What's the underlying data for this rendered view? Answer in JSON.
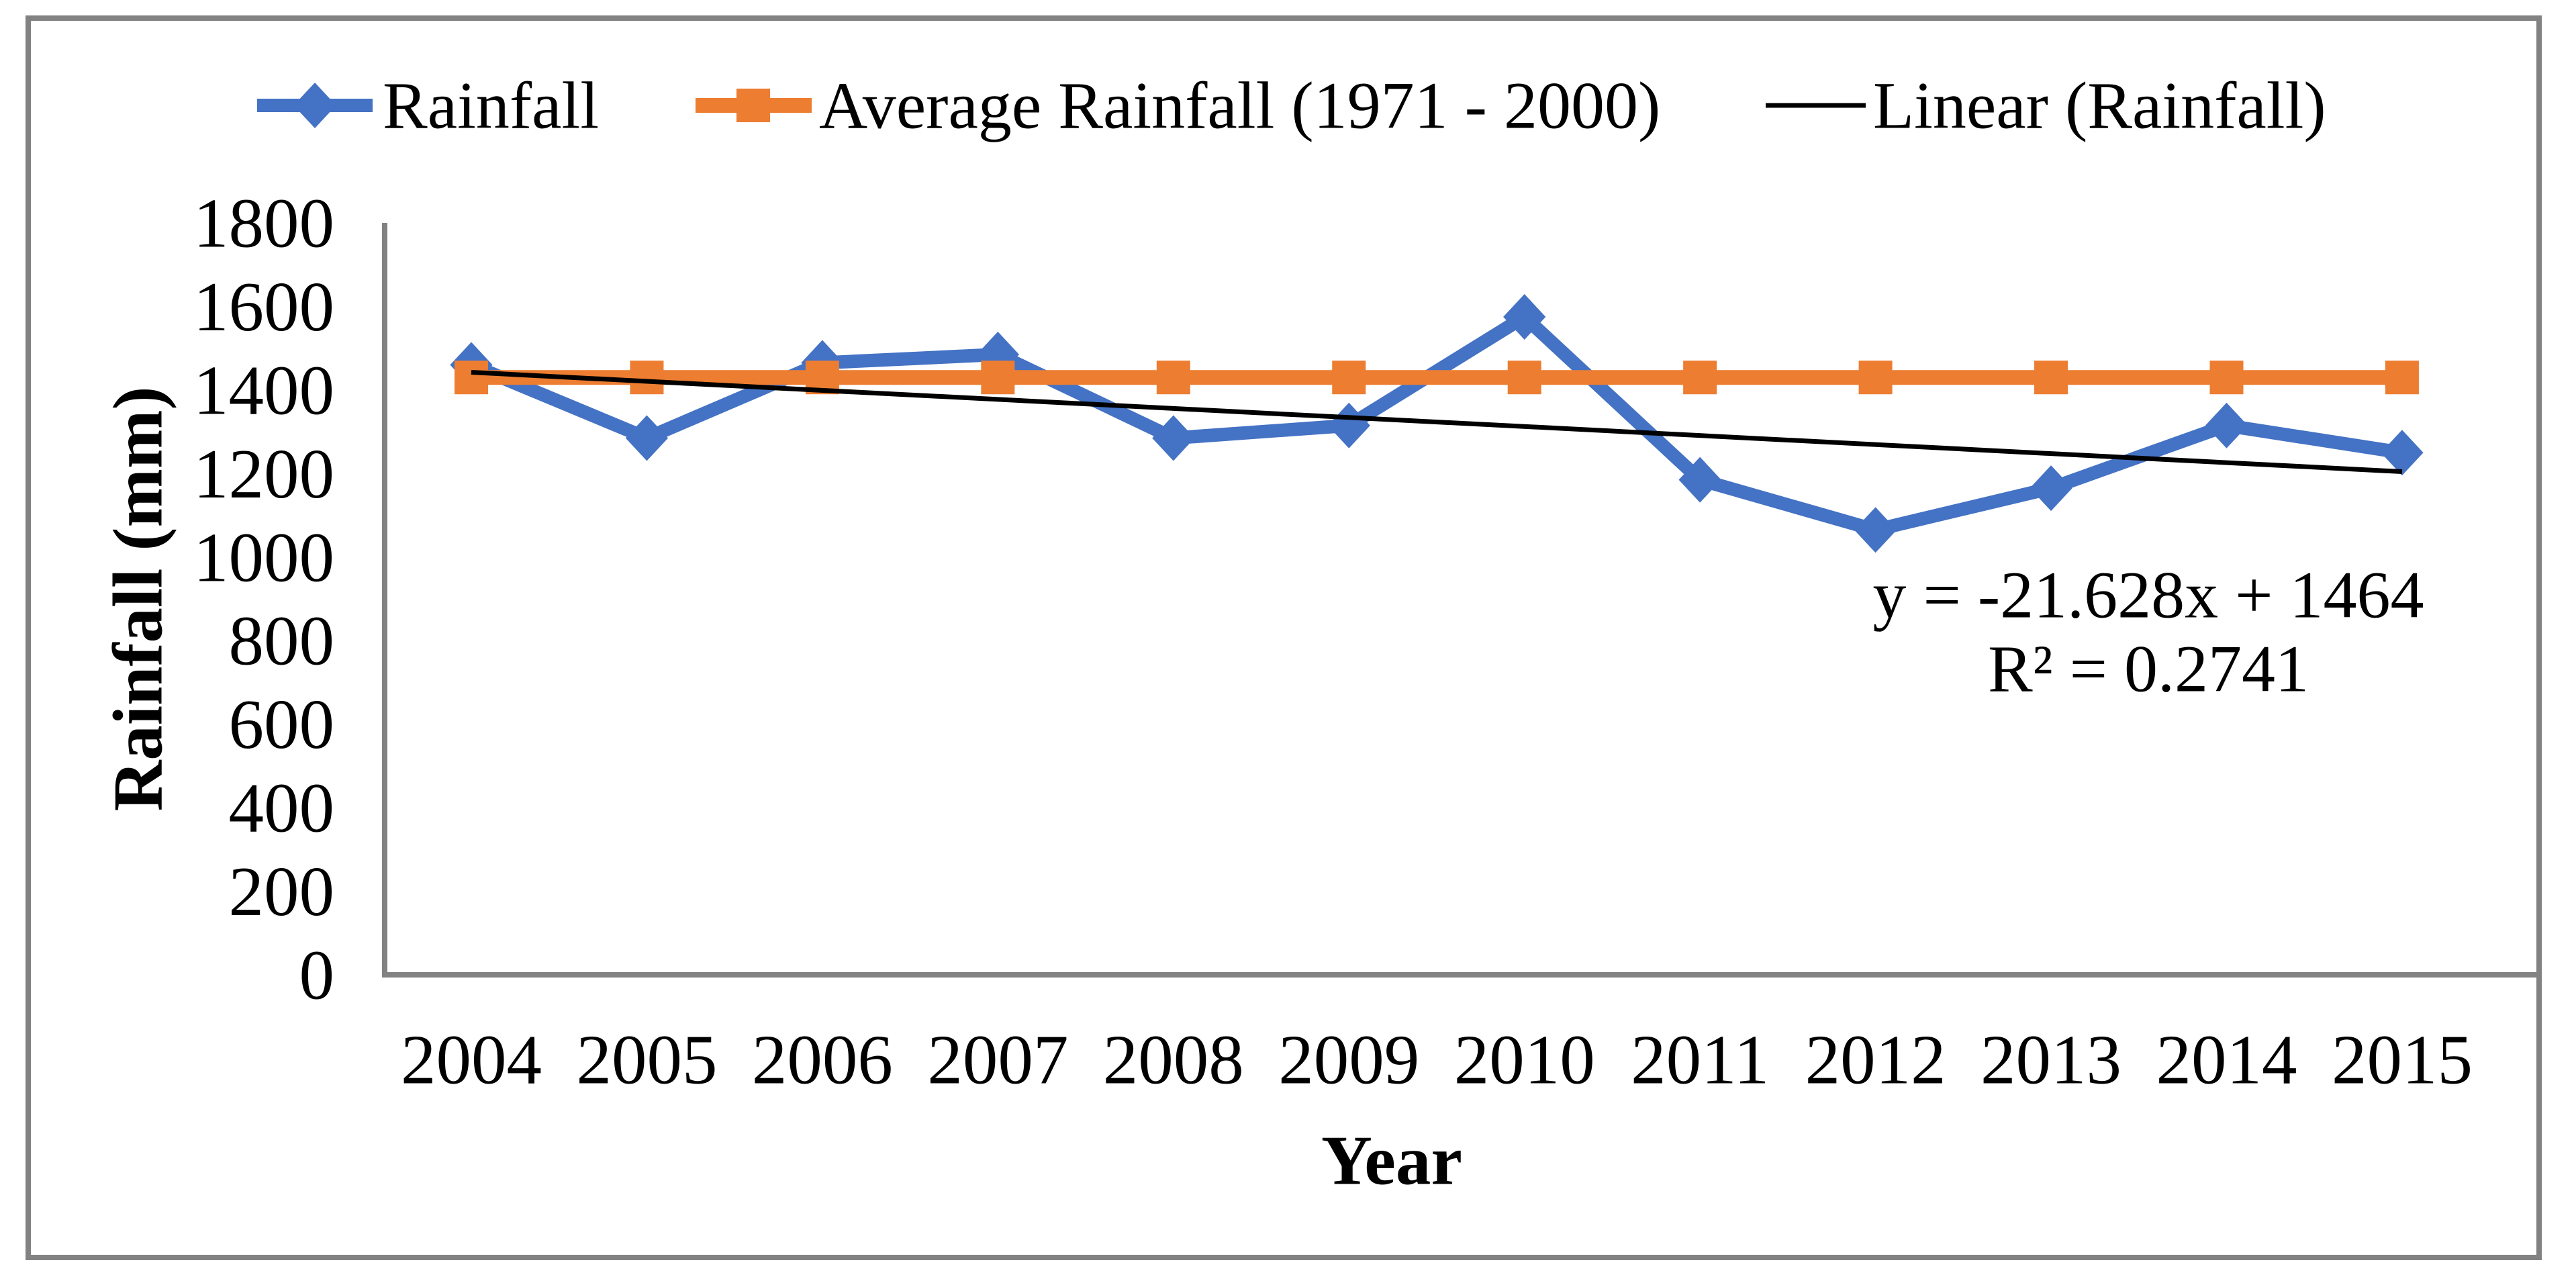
{
  "chart_data": {
    "type": "line",
    "title": "",
    "xlabel": "Year",
    "ylabel": "Rainfall (mm)",
    "x": [
      2004,
      2005,
      2006,
      2007,
      2008,
      2009,
      2010,
      2011,
      2012,
      2013,
      2014,
      2015
    ],
    "series": [
      {
        "name": "Rainfall",
        "color": "#4472C4",
        "marker": "diamond",
        "values": [
          1460,
          1285,
          1465,
          1485,
          1285,
          1315,
          1575,
          1185,
          1065,
          1165,
          1315,
          1250
        ]
      },
      {
        "name": "Average Rainfall (1971 - 2000)",
        "color": "#ED7D31",
        "marker": "square",
        "values": [
          1430,
          1430,
          1430,
          1430,
          1430,
          1430,
          1430,
          1430,
          1430,
          1430,
          1430,
          1430
        ]
      },
      {
        "name": "Linear (Rainfall)",
        "color": "#000000",
        "marker": "none",
        "trend": {
          "slope": -21.628,
          "intercept": 1464
        }
      }
    ],
    "ylim": [
      0,
      1800
    ],
    "yticks": [
      0,
      200,
      400,
      600,
      800,
      1000,
      1200,
      1400,
      1600,
      1800
    ],
    "grid": "off",
    "legend_position": "top",
    "annotation": {
      "line1": "y = -21.628x + 1464",
      "line2": "R² = 0.2741"
    }
  },
  "colors": {
    "axis": "#828282",
    "border": "#828282",
    "background": "#ffffff",
    "text": "#000000"
  }
}
